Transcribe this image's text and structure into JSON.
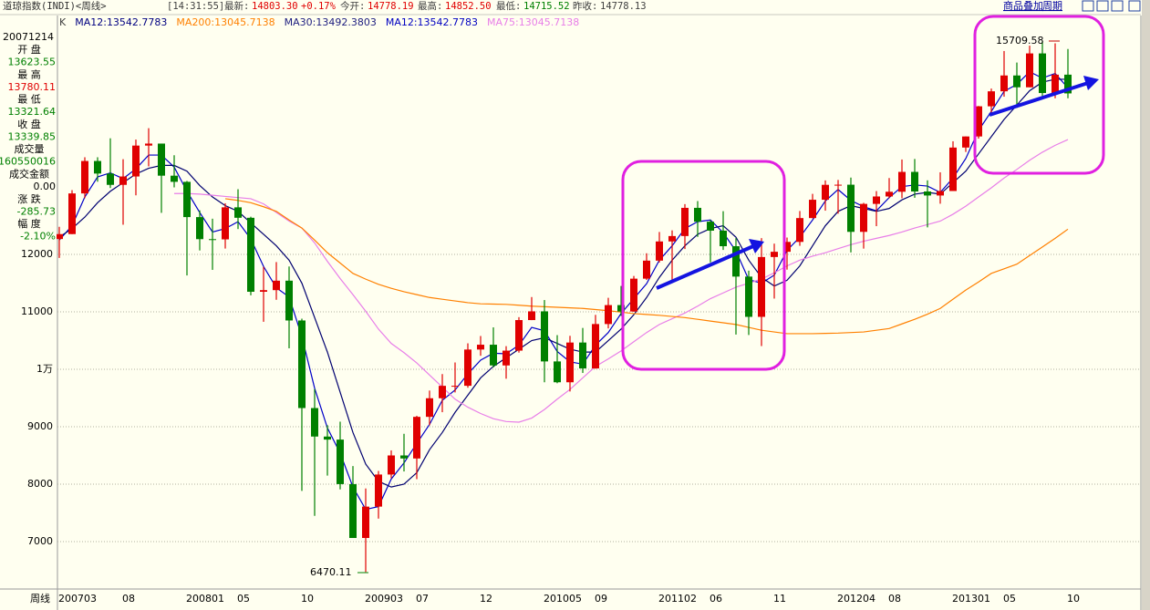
{
  "header": {
    "title": "道琼指数(INDI)<周线>",
    "time": "[14:31:55]",
    "quote": [
      {
        "label": "最新:",
        "value": "14803.30",
        "color": "#e00000"
      },
      {
        "label": "今开:",
        "value": "14778.19",
        "color": "#e00000"
      },
      {
        "label": "最高:",
        "value": "14852.50",
        "color": "#e00000"
      },
      {
        "label": "最低:",
        "value": "14715.52",
        "color": "#008000"
      },
      {
        "label": "昨收:",
        "value": "14778.13",
        "color": "#404040"
      }
    ],
    "change": "+0.17%"
  },
  "toolbar": [
    "商品叠加",
    "周期"
  ],
  "panel": {
    "date": "20071214",
    "rows": [
      {
        "label": "开 盘",
        "value": "13623.55",
        "color": "#008000"
      },
      {
        "label": "最 高",
        "value": "13780.11",
        "color": "#e00000"
      },
      {
        "label": "最 低",
        "value": "13321.64",
        "color": "#008000"
      },
      {
        "label": "收 盘",
        "value": "13339.85",
        "color": "#008000"
      },
      {
        "label": "成交量",
        "value": "160550016",
        "color": "#008000"
      },
      {
        "label": "成交金额",
        "value": "0.00",
        "color": "#000000"
      },
      {
        "label": "涨 跌",
        "value": "-285.73",
        "color": "#008000"
      },
      {
        "label": "幅 度",
        "value": "-2.10%",
        "color": "#008000"
      }
    ]
  },
  "period_label": "周线",
  "chart_data": {
    "type": "candlestick",
    "legend": [
      {
        "text": "K",
        "color": "#404040"
      },
      {
        "text": "MA12:13542.7783",
        "color": "#000080"
      },
      {
        "text": "MA200:13045.7138",
        "color": "#ff8000"
      },
      {
        "text": "MA30:13492.3803",
        "color": "#202080"
      },
      {
        "text": "MA12:13542.7783",
        "color": "#0000c0"
      },
      {
        "text": "MA75:13045.7138",
        "color": "#e87ee8"
      }
    ],
    "categories": [
      "200703",
      null,
      null,
      null,
      null,
      "08",
      null,
      null,
      null,
      null,
      "200801",
      null,
      null,
      null,
      "05",
      null,
      null,
      null,
      null,
      "10",
      null,
      null,
      null,
      null,
      "200903",
      null,
      null,
      null,
      "07",
      null,
      null,
      null,
      null,
      "12",
      null,
      null,
      null,
      null,
      "201005",
      null,
      null,
      null,
      "09",
      null,
      null,
      null,
      null,
      "201102",
      null,
      null,
      null,
      "06",
      null,
      null,
      null,
      null,
      "11",
      null,
      null,
      null,
      null,
      "201204",
      null,
      null,
      null,
      "08",
      null,
      null,
      null,
      null,
      "201301",
      null,
      null,
      null,
      "05",
      null,
      null,
      null,
      null,
      "10"
    ],
    "open": [
      12268,
      12354,
      13062,
      13627,
      13408,
      13211,
      13357,
      13895,
      13930,
      13371,
      13264,
      12650,
      12266,
      12262,
      12820,
      12638,
      11350,
      11378,
      11543,
      10850,
      9325,
      8829,
      8776,
      8001,
      7063,
      7609,
      8168,
      8500,
      8447,
      9172,
      9496,
      9712,
      9713,
      10344,
      10428,
      10067,
      10325,
      10857,
      11009,
      10137,
      9774,
      10466,
      10015,
      10788,
      11118,
      11006,
      11578,
      11892,
      12226,
      12320,
      12811,
      12570,
      12414,
      12143,
      11614,
      10913,
      11955,
      12046,
      12218,
      12633,
      12952,
      13212,
      13214,
      12393,
      12880,
      13009,
      13091,
      13437,
      13096,
      13026,
      13104,
      13861,
      14054,
      14579,
      14840,
      15116,
      14910,
      15500,
      14810,
      15130
    ],
    "high": [
      12481,
      13120,
      13692,
      13692,
      14022,
      13658,
      14000,
      14198,
      13930,
      13727,
      13279,
      12767,
      12622,
      12891,
      13136,
      12657,
      11783,
      11867,
      11790,
      10882,
      9654,
      9026,
      9088,
      8315,
      7925,
      8230,
      8588,
      8877,
      9190,
      9630,
      9917,
      10119,
      10452,
      10580,
      10730,
      10403,
      10908,
      11258,
      11206,
      10595,
      10583,
      10720,
      10948,
      11245,
      11451,
      11625,
      12020,
      12391,
      12419,
      12876,
      12929,
      12600,
      12753,
      12284,
      11717,
      12284,
      12188,
      12294,
      12756,
      13055,
      13289,
      13297,
      13338,
      12898,
      13103,
      13330,
      13653,
      13662,
      13290,
      13430,
      13970,
      14054,
      14585,
      14888,
      15542,
      15341,
      15635,
      15709.58,
      15676,
      15577
    ],
    "low": [
      11939,
      12354,
      12980,
      13266,
      13156,
      12517,
      13029,
      13533,
      12724,
      13167,
      11634,
      12069,
      11731,
      12102,
      12442,
      11288,
      10827,
      11210,
      10365,
      7882,
      7449,
      8149,
      7909,
      7063,
      6470.11,
      7400,
      8105,
      8221,
      8087,
      9025,
      9253,
      9597,
      9679,
      10235,
      10032,
      9836,
      10290,
      10856,
      9774,
      9757,
      9614,
      9936,
      10010,
      10712,
      10929,
      11000,
      11555,
      11860,
      11555,
      12094,
      12306,
      11862,
      12078,
      10605,
      10597,
      10404,
      11231,
      11735,
      12150,
      12630,
      12762,
      12710,
      12035,
      12101,
      12492,
      12978,
      12978,
      12986,
      12471,
      12883,
      13104,
      13784,
      14017,
      14434,
      14746,
      14551,
      14910,
      14760,
      14719,
      14719
    ],
    "close": [
      12354,
      13062,
      13627,
      13408,
      13211,
      13357,
      13895,
      13930,
      13371,
      13264,
      12650,
      12266,
      12262,
      12820,
      12638,
      11350,
      11378,
      11543,
      10850,
      9325,
      8829,
      8776,
      8001,
      7063,
      7609,
      8168,
      8500,
      8447,
      9172,
      9496,
      9712,
      9713,
      10344,
      10428,
      10067,
      10325,
      10857,
      11009,
      10137,
      9774,
      10466,
      10015,
      10788,
      11118,
      11006,
      11578,
      11892,
      12226,
      12320,
      12811,
      12570,
      12414,
      12143,
      11614,
      10913,
      11955,
      12046,
      12218,
      12633,
      12952,
      13212,
      13214,
      12393,
      12880,
      13009,
      13091,
      13437,
      13096,
      13026,
      13104,
      13861,
      14054,
      14579,
      14840,
      15116,
      14910,
      15500,
      14810,
      15130,
      14803.3
    ],
    "up_color": "#e00000",
    "down_color": "#008000",
    "lines": [
      {
        "color": "#0000c8",
        "values": [
          12250,
          12500,
          13000,
          13350,
          13420,
          13320,
          13490,
          13730,
          13730,
          13520,
          13100,
          12730,
          12390,
          12450,
          12570,
          12270,
          11790,
          11420,
          11260,
          10570,
          9670,
          8980,
          8540,
          7950,
          7560,
          7610,
          8090,
          8370,
          8710,
          9040,
          9460,
          9640,
          9920,
          10160,
          10280,
          10270,
          10420,
          10730,
          10670,
          10310,
          10130,
          10090,
          10420,
          10640,
          10970,
          11230,
          11490,
          11900,
          12150,
          12450,
          12570,
          12600,
          12380,
          12060,
          11560,
          11500,
          11640,
          12070,
          12300,
          12600,
          12930,
          13130,
          12940,
          12830,
          12760,
          12990,
          13180,
          13210,
          13190,
          13080,
          13330,
          13670,
          14160,
          14490,
          14840,
          14960,
          15180,
          15070,
          15150,
          14900
        ]
      },
      {
        "color": "#000070",
        "values": [
          12300,
          12450,
          12650,
          12900,
          13100,
          13250,
          13400,
          13500,
          13550,
          13550,
          13450,
          13200,
          13000,
          12850,
          12750,
          12550,
          12350,
          12150,
          11900,
          11500,
          10900,
          10300,
          9600,
          8900,
          8350,
          8050,
          7950,
          8000,
          8200,
          8600,
          8900,
          9250,
          9550,
          9850,
          10050,
          10200,
          10350,
          10500,
          10550,
          10450,
          10350,
          10300,
          10300,
          10500,
          10700,
          10950,
          11250,
          11600,
          11900,
          12150,
          12350,
          12450,
          12500,
          12300,
          11900,
          11600,
          11450,
          11550,
          11800,
          12150,
          12500,
          12750,
          12850,
          12800,
          12750,
          12800,
          12950,
          13050,
          13080,
          13050,
          13250,
          13450,
          13750,
          14050,
          14350,
          14600,
          14850,
          15000,
          15050,
          15050
        ]
      },
      {
        "color": "#e87ee8",
        "values": [
          null,
          null,
          null,
          null,
          null,
          null,
          null,
          null,
          null,
          13060,
          13060,
          13050,
          13030,
          13010,
          12990,
          12970,
          12880,
          12730,
          12580,
          12460,
          12200,
          11880,
          11580,
          11300,
          11010,
          10700,
          10450,
          10290,
          10110,
          9900,
          9690,
          9480,
          9340,
          9230,
          9140,
          9090,
          9080,
          9150,
          9300,
          9480,
          9650,
          9850,
          10050,
          10180,
          10320,
          10480,
          10640,
          10780,
          10880,
          10980,
          11100,
          11230,
          11330,
          11430,
          11500,
          11570,
          11680,
          11800,
          11900,
          11970,
          12030,
          12100,
          12170,
          12230,
          12280,
          12330,
          12390,
          12460,
          12520,
          12580,
          12700,
          12840,
          13000,
          13160,
          13330,
          13480,
          13640,
          13780,
          13900,
          14000
        ]
      },
      {
        "color": "#ff8000",
        "values": [
          null,
          null,
          null,
          null,
          null,
          null,
          null,
          null,
          null,
          null,
          null,
          null,
          null,
          12970,
          12940,
          12900,
          12830,
          12750,
          12600,
          12460,
          12250,
          12030,
          11850,
          11670,
          11570,
          11480,
          11410,
          11350,
          11300,
          11250,
          11220,
          11190,
          11160,
          11140,
          11135,
          11130,
          11115,
          11100,
          11090,
          11080,
          11070,
          11060,
          11040,
          11020,
          10995,
          10970,
          10955,
          10940,
          10920,
          10900,
          10870,
          10840,
          10810,
          10780,
          10730,
          10680,
          10650,
          10620,
          10620,
          10620,
          10625,
          10630,
          10640,
          10650,
          10680,
          10710,
          10790,
          10870,
          10960,
          11060,
          11220,
          11380,
          11520,
          11670,
          11750,
          11830,
          11980,
          12130,
          12280,
          12440
        ]
      }
    ],
    "ylim": [
      6190,
      16160
    ],
    "yticks": [
      7000,
      8000,
      9000,
      {
        "value": 10000,
        "label": "1万"
      },
      11000,
      12000
    ],
    "grid": true,
    "annotations": [
      "15709.58",
      "6470.11"
    ]
  }
}
